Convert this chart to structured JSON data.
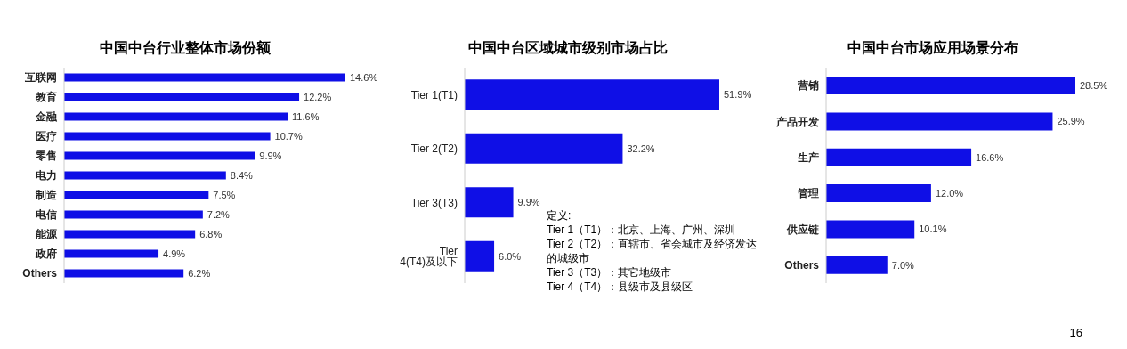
{
  "chart_data": [
    {
      "type": "bar",
      "orientation": "horizontal",
      "title": "中国中台行业整体市场份额",
      "categories": [
        "互联网",
        "教育",
        "金融",
        "医疗",
        "零售",
        "电力",
        "制造",
        "电信",
        "能源",
        "政府",
        "Others"
      ],
      "values": [
        14.6,
        12.2,
        11.6,
        10.7,
        9.9,
        8.4,
        7.5,
        7.2,
        6.8,
        4.9,
        6.2
      ],
      "value_labels": [
        "14.6%",
        "12.2%",
        "11.6%",
        "10.7%",
        "9.9%",
        "8.4%",
        "7.5%",
        "7.2%",
        "6.8%",
        "4.9%",
        "6.2%"
      ],
      "color": "#0f0fe6",
      "grid": false,
      "legend": false
    },
    {
      "type": "bar",
      "orientation": "horizontal",
      "title": "中国中台区域城市级别市场占比",
      "categories": [
        "Tier 1(T1)",
        "Tier 2(T2)",
        "Tier 3(T3)",
        "Tier 4(T4)及以下"
      ],
      "values": [
        51.9,
        32.2,
        9.9,
        6.0
      ],
      "value_labels": [
        "51.9%",
        "32.2%",
        "9.9%",
        "6.0%"
      ],
      "color": "#0f0fe6",
      "grid": false,
      "legend": false,
      "annotations": [
        "定义:",
        "Tier 1（T1）：北京、上海、广州、深圳",
        "Tier 2（T2）：直辖市、省会城市及经济发达的城级市",
        "Tier 3（T3）：其它地级市",
        "Tier 4（T4）：县级市及县级区"
      ]
    },
    {
      "type": "bar",
      "orientation": "horizontal",
      "title": "中国中台市场应用场景分布",
      "categories": [
        "营销",
        "产品开发",
        "生产",
        "管理",
        "供应链",
        "Others"
      ],
      "values": [
        28.5,
        25.9,
        16.6,
        12.0,
        10.1,
        7.0
      ],
      "value_labels": [
        "28.5%",
        "25.9%",
        "16.6%",
        "12.0%",
        "10.1%",
        "7.0%"
      ],
      "color": "#0f0fe6",
      "grid": false,
      "legend": false,
      "annotations": [
        "16"
      ]
    }
  ]
}
